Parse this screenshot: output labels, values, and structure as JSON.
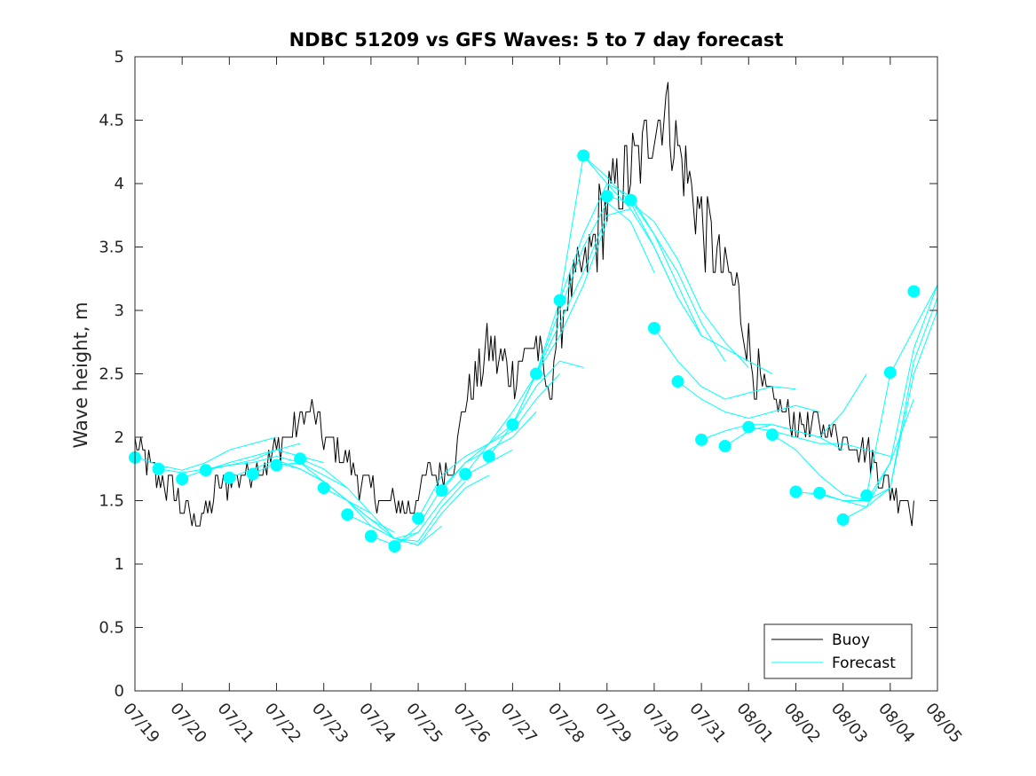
{
  "chart_data": {
    "type": "line",
    "title": "NDBC 51209 vs GFS Waves: 5 to 7 day forecast",
    "xlabel": "",
    "ylabel": "Wave height, m",
    "x_range_days": [
      "07/19",
      "08/05"
    ],
    "x_tick_labels": [
      "07/19",
      "07/20",
      "07/21",
      "07/22",
      "07/23",
      "07/24",
      "07/25",
      "07/26",
      "07/27",
      "07/28",
      "07/29",
      "07/30",
      "07/31",
      "08/01",
      "08/02",
      "08/03",
      "08/04",
      "08/05"
    ],
    "ylim": [
      0,
      5
    ],
    "y_ticks": [
      0,
      0.5,
      1,
      1.5,
      2,
      2.5,
      3,
      3.5,
      4,
      4.5,
      5
    ],
    "y_tick_labels": [
      "0",
      "0.5",
      "1",
      "1.5",
      "2",
      "2.5",
      "3",
      "3.5",
      "4",
      "4.5",
      "5"
    ],
    "grid": false,
    "legend": {
      "placement": "bottom-right",
      "entries": [
        "Buoy",
        "Forecast"
      ]
    },
    "colors": {
      "buoy": "#000000",
      "forecast": "#00ffff",
      "axis": "#262626"
    },
    "buoy_series": {
      "name": "Buoy",
      "x": [
        "07/19 00:00",
        "07/19 06:00",
        "07/19 12:00",
        "07/19 18:00",
        "07/20 00:00",
        "07/20 06:00",
        "07/20 12:00",
        "07/20 18:00",
        "07/21 00:00",
        "07/21 06:00",
        "07/21 12:00",
        "07/21 18:00",
        "07/22 00:00",
        "07/22 06:00",
        "07/22 12:00",
        "07/22 18:00",
        "07/23 00:00",
        "07/23 06:00",
        "07/23 12:00",
        "07/23 18:00",
        "07/24 00:00",
        "07/24 06:00",
        "07/24 12:00",
        "07/24 18:00",
        "07/25 00:00",
        "07/25 06:00",
        "07/25 12:00",
        "07/25 18:00",
        "07/26 00:00",
        "07/26 06:00",
        "07/26 12:00",
        "07/26 18:00",
        "07/27 00:00",
        "07/27 06:00",
        "07/27 12:00",
        "07/27 18:00",
        "07/28 00:00",
        "07/28 06:00",
        "07/28 12:00",
        "07/28 18:00",
        "07/29 00:00",
        "07/29 06:00",
        "07/29 12:00",
        "07/29 18:00",
        "07/30 00:00",
        "07/30 06:00",
        "07/30 12:00",
        "07/30 18:00",
        "07/31 00:00",
        "07/31 06:00",
        "07/31 12:00",
        "07/31 18:00",
        "08/01 00:00",
        "08/01 06:00",
        "08/01 12:00",
        "08/01 18:00",
        "08/02 00:00",
        "08/02 06:00",
        "08/02 12:00",
        "08/02 18:00",
        "08/03 00:00",
        "08/03 06:00",
        "08/03 12:00",
        "08/03 18:00",
        "08/04 00:00",
        "08/04 06:00",
        "08/04 12:00"
      ],
      "values": [
        1.95,
        1.8,
        1.65,
        1.6,
        1.45,
        1.35,
        1.4,
        1.6,
        1.65,
        1.7,
        1.75,
        1.8,
        1.9,
        2.0,
        2.15,
        2.2,
        2.0,
        1.9,
        1.8,
        1.65,
        1.6,
        1.5,
        1.45,
        1.4,
        1.55,
        1.7,
        1.75,
        1.8,
        2.3,
        2.5,
        2.7,
        2.6,
        2.5,
        2.65,
        2.8,
        2.3,
        2.9,
        3.2,
        3.3,
        3.6,
        3.8,
        4.0,
        4.1,
        4.2,
        4.5,
        4.6,
        4.3,
        4.0,
        3.7,
        3.5,
        3.3,
        3.2,
        2.7,
        2.4,
        2.3,
        2.2,
        2.1,
        2.05,
        2.1,
        2.05,
        2.0,
        1.95,
        1.9,
        1.75,
        1.6,
        1.5,
        1.45
      ]
    },
    "forecast_series": [
      {
        "x": [
          "07/19 00:00",
          "07/19 12:00",
          "07/20 00:00",
          "07/20 12:00",
          "07/21 00:00",
          "07/21 12:00",
          "07/22 00:00"
        ],
        "values": [
          1.85,
          1.78,
          1.74,
          1.8,
          1.9,
          1.95,
          2.0
        ]
      },
      {
        "x": [
          "07/19 12:00",
          "07/20 00:00",
          "07/20 12:00",
          "07/21 00:00",
          "07/21 12:00",
          "07/22 00:00",
          "07/22 12:00"
        ],
        "values": [
          1.75,
          1.72,
          1.75,
          1.78,
          1.82,
          1.9,
          1.95
        ]
      },
      {
        "x": [
          "07/20 00:00",
          "07/20 12:00",
          "07/21 00:00",
          "07/21 12:00",
          "07/22 00:00",
          "07/22 12:00",
          "07/23 00:00"
        ],
        "values": [
          1.68,
          1.74,
          1.8,
          1.85,
          1.9,
          1.85,
          1.8
        ]
      },
      {
        "x": [
          "07/20 12:00",
          "07/21 00:00",
          "07/21 12:00",
          "07/22 00:00",
          "07/22 12:00",
          "07/23 00:00",
          "07/23 12:00"
        ],
        "values": [
          1.74,
          1.78,
          1.8,
          1.85,
          1.8,
          1.7,
          1.6
        ]
      },
      {
        "x": [
          "07/21 00:00",
          "07/21 12:00",
          "07/22 00:00",
          "07/22 12:00",
          "07/23 00:00",
          "07/23 12:00",
          "07/24 00:00"
        ],
        "values": [
          1.68,
          1.75,
          1.82,
          1.75,
          1.65,
          1.5,
          1.4
        ]
      },
      {
        "x": [
          "07/21 12:00",
          "07/22 00:00",
          "07/22 12:00",
          "07/23 00:00",
          "07/23 12:00",
          "07/24 00:00",
          "07/24 12:00"
        ],
        "values": [
          1.71,
          1.8,
          1.75,
          1.65,
          1.5,
          1.35,
          1.25
        ]
      },
      {
        "x": [
          "07/22 00:00",
          "07/22 12:00",
          "07/23 00:00",
          "07/23 12:00",
          "07/24 00:00",
          "07/24 12:00",
          "07/25 00:00"
        ],
        "values": [
          1.78,
          1.8,
          1.65,
          1.5,
          1.3,
          1.2,
          1.25
        ]
      },
      {
        "x": [
          "07/22 12:00",
          "07/23 00:00",
          "07/23 12:00",
          "07/24 00:00",
          "07/24 12:00",
          "07/25 00:00",
          "07/25 12:00"
        ],
        "values": [
          1.83,
          1.75,
          1.6,
          1.4,
          1.2,
          1.15,
          1.3
        ]
      },
      {
        "x": [
          "07/23 00:00",
          "07/23 12:00",
          "07/24 00:00",
          "07/24 12:00",
          "07/25 00:00",
          "07/25 12:00",
          "07/26 00:00"
        ],
        "values": [
          1.6,
          1.5,
          1.35,
          1.2,
          1.18,
          1.45,
          1.65
        ]
      },
      {
        "x": [
          "07/23 12:00",
          "07/24 00:00",
          "07/24 12:00",
          "07/25 00:00",
          "07/25 12:00",
          "07/26 00:00",
          "07/26 12:00"
        ],
        "values": [
          1.39,
          1.3,
          1.2,
          1.15,
          1.4,
          1.6,
          1.7
        ]
      },
      {
        "x": [
          "07/24 00:00",
          "07/24 12:00",
          "07/25 00:00",
          "07/25 12:00",
          "07/26 00:00",
          "07/26 12:00",
          "07/27 00:00"
        ],
        "values": [
          1.22,
          1.15,
          1.25,
          1.5,
          1.7,
          1.8,
          1.9
        ]
      },
      {
        "x": [
          "07/24 12:00",
          "07/25 00:00",
          "07/25 12:00",
          "07/26 00:00",
          "07/26 12:00",
          "07/27 00:00",
          "07/27 12:00"
        ],
        "values": [
          1.14,
          1.3,
          1.6,
          1.8,
          1.9,
          2.0,
          2.2
        ]
      },
      {
        "x": [
          "07/25 00:00",
          "07/25 12:00",
          "07/26 00:00",
          "07/26 12:00",
          "07/27 00:00",
          "07/27 12:00",
          "07/28 00:00"
        ],
        "values": [
          1.36,
          1.7,
          1.85,
          1.95,
          2.05,
          2.3,
          2.5
        ]
      },
      {
        "x": [
          "07/25 12:00",
          "07/26 00:00",
          "07/26 12:00",
          "07/27 00:00",
          "07/27 12:00",
          "07/28 00:00",
          "07/28 12:00"
        ],
        "values": [
          1.58,
          1.8,
          1.95,
          2.1,
          2.4,
          2.6,
          2.55
        ]
      },
      {
        "x": [
          "07/26 00:00",
          "07/26 12:00",
          "07/27 00:00",
          "07/27 12:00",
          "07/28 00:00",
          "07/28 12:00",
          "07/29 00:00"
        ],
        "values": [
          1.71,
          1.95,
          2.2,
          2.5,
          2.8,
          3.2,
          3.7
        ]
      },
      {
        "x": [
          "07/26 12:00",
          "07/27 00:00",
          "07/27 12:00",
          "07/28 00:00",
          "07/28 12:00",
          "07/29 00:00",
          "07/29 12:00"
        ],
        "values": [
          1.85,
          2.1,
          2.5,
          2.9,
          3.3,
          3.75,
          3.8
        ]
      },
      {
        "x": [
          "07/27 00:00",
          "07/27 12:00",
          "07/28 00:00",
          "07/28 12:00",
          "07/29 00:00",
          "07/29 12:00",
          "07/30 00:00"
        ],
        "values": [
          2.1,
          2.5,
          3.0,
          3.5,
          3.85,
          3.7,
          3.3
        ]
      },
      {
        "x": [
          "07/27 12:00",
          "07/28 00:00",
          "07/28 12:00",
          "07/29 00:00",
          "07/29 12:00",
          "07/30 00:00",
          "07/30 12:00"
        ],
        "values": [
          2.5,
          3.08,
          3.6,
          4.0,
          3.8,
          3.5,
          3.1
        ]
      },
      {
        "x": [
          "07/28 00:00",
          "07/28 12:00",
          "07/29 00:00",
          "07/29 12:00",
          "07/30 00:00",
          "07/30 12:00",
          "07/31 00:00"
        ],
        "values": [
          3.08,
          4.22,
          4.05,
          3.85,
          3.5,
          3.1,
          2.8
        ]
      },
      {
        "x": [
          "07/28 12:00",
          "07/29 00:00",
          "07/29 12:00",
          "07/30 00:00",
          "07/30 12:00",
          "07/31 00:00",
          "07/31 12:00"
        ],
        "values": [
          4.22,
          4.0,
          3.9,
          3.6,
          3.3,
          2.9,
          2.6
        ]
      },
      {
        "x": [
          "07/29 00:00",
          "07/29 12:00",
          "07/30 00:00",
          "07/30 12:00",
          "07/31 00:00",
          "07/31 12:00",
          "08/01 00:00"
        ],
        "values": [
          3.9,
          3.85,
          3.7,
          3.4,
          3.0,
          2.75,
          2.55
        ]
      },
      {
        "x": [
          "07/29 12:00",
          "07/30 00:00",
          "07/30 12:00",
          "07/31 00:00",
          "07/31 12:00",
          "08/01 00:00",
          "08/01 12:00"
        ],
        "values": [
          3.87,
          3.6,
          3.2,
          2.8,
          2.7,
          2.6,
          2.5
        ]
      },
      {
        "x": [
          "07/30 00:00",
          "07/30 12:00",
          "07/31 00:00",
          "07/31 12:00",
          "08/01 00:00",
          "08/01 12:00",
          "08/02 00:00"
        ],
        "values": [
          2.86,
          2.6,
          2.4,
          2.3,
          2.35,
          2.4,
          2.38
        ]
      },
      {
        "x": [
          "07/30 12:00",
          "07/31 00:00",
          "07/31 12:00",
          "08/01 00:00",
          "08/01 12:00",
          "08/02 00:00",
          "08/02 12:00"
        ],
        "values": [
          2.44,
          2.3,
          2.2,
          2.15,
          2.2,
          2.25,
          2.2
        ]
      },
      {
        "x": [
          "07/31 00:00",
          "07/31 12:00",
          "08/01 00:00",
          "08/01 12:00",
          "08/02 00:00",
          "08/02 12:00",
          "08/03 00:00"
        ],
        "values": [
          1.98,
          2.05,
          2.1,
          2.1,
          2.05,
          2.0,
          1.9
        ]
      },
      {
        "x": [
          "07/31 12:00",
          "08/01 00:00",
          "08/01 12:00",
          "08/02 00:00",
          "08/02 12:00",
          "08/03 00:00",
          "08/03 12:00"
        ],
        "values": [
          1.93,
          2.05,
          2.1,
          2.05,
          2.0,
          2.2,
          2.5
        ]
      },
      {
        "x": [
          "08/01 00:00",
          "08/01 12:00",
          "08/02 00:00",
          "08/02 12:00",
          "08/03 00:00",
          "08/03 12:00",
          "08/04 00:00"
        ],
        "values": [
          2.08,
          2.05,
          2.0,
          1.95,
          1.95,
          1.9,
          1.85
        ]
      },
      {
        "x": [
          "08/01 12:00",
          "08/02 00:00",
          "08/02 12:00",
          "08/03 00:00",
          "08/03 12:00",
          "08/04 00:00",
          "08/04 12:00"
        ],
        "values": [
          2.02,
          1.9,
          1.7,
          1.55,
          1.5,
          1.8,
          2.3
        ]
      },
      {
        "x": [
          "08/02 00:00",
          "08/02 12:00",
          "08/03 00:00",
          "08/03 12:00",
          "08/04 00:00",
          "08/04 12:00",
          "08/05 00:00"
        ],
        "values": [
          1.57,
          1.55,
          1.5,
          1.5,
          1.6,
          2.6,
          3.1
        ]
      },
      {
        "x": [
          "08/02 12:00",
          "08/03 00:00",
          "08/03 12:00",
          "08/04 00:00",
          "08/04 12:00",
          "08/05 00:00"
        ],
        "values": [
          1.56,
          1.5,
          1.45,
          1.6,
          2.5,
          3.0
        ]
      },
      {
        "x": [
          "08/03 00:00",
          "08/03 12:00",
          "08/04 00:00",
          "08/04 12:00",
          "08/05 00:00"
        ],
        "values": [
          1.35,
          1.45,
          1.8,
          2.7,
          3.2
        ]
      },
      {
        "x": [
          "08/03 12:00",
          "08/04 00:00",
          "08/04 12:00",
          "08/05 00:00"
        ],
        "values": [
          1.54,
          2.5,
          2.85,
          3.2
        ]
      }
    ],
    "forecast_markers": {
      "name": "Forecast",
      "x": [
        "07/19 00:00",
        "07/19 12:00",
        "07/20 00:00",
        "07/20 12:00",
        "07/21 00:00",
        "07/21 12:00",
        "07/22 00:00",
        "07/22 12:00",
        "07/23 00:00",
        "07/23 12:00",
        "07/24 00:00",
        "07/24 12:00",
        "07/25 00:00",
        "07/25 12:00",
        "07/26 00:00",
        "07/26 12:00",
        "07/27 00:00",
        "07/27 12:00",
        "07/28 00:00",
        "07/28 12:00",
        "07/29 00:00",
        "07/29 12:00",
        "07/30 00:00",
        "07/30 12:00",
        "07/31 00:00",
        "07/31 12:00",
        "08/01 00:00",
        "08/01 12:00",
        "08/02 00:00",
        "08/02 12:00",
        "08/03 00:00",
        "08/03 12:00",
        "08/04 00:00",
        "08/04 12:00"
      ],
      "values": [
        1.84,
        1.75,
        1.67,
        1.74,
        1.68,
        1.71,
        1.78,
        1.83,
        1.6,
        1.39,
        1.22,
        1.14,
        1.36,
        1.58,
        1.71,
        1.85,
        2.1,
        2.5,
        3.08,
        4.22,
        3.9,
        3.87,
        2.86,
        2.44,
        1.98,
        1.93,
        2.08,
        2.02,
        1.57,
        1.56,
        1.35,
        1.54,
        2.51,
        3.15
      ]
    }
  }
}
